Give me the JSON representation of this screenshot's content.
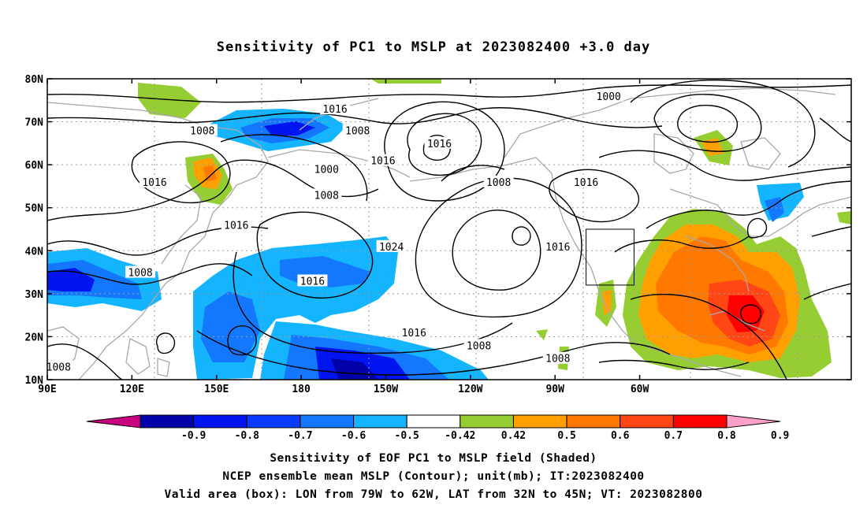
{
  "title": "Sensitivity of PC1 to MSLP at 2023082400 +3.0 day",
  "lon_ticks": [
    "90E",
    "120E",
    "150E",
    "180",
    "150W",
    "120W",
    "90W",
    "60W"
  ],
  "lat_ticks": [
    "80N",
    "70N",
    "60N",
    "50N",
    "40N",
    "30N",
    "20N",
    "10N"
  ],
  "contour_labels": [
    {
      "text": "1016",
      "lon": -168,
      "lat": 73
    },
    {
      "text": "1008",
      "lon": -160,
      "lat": 68
    },
    {
      "text": "1000",
      "lon": -71,
      "lat": 76
    },
    {
      "text": "1008",
      "lon": 145,
      "lat": 68
    },
    {
      "text": "1016",
      "lon": -131,
      "lat": 65
    },
    {
      "text": "1016",
      "lon": -151,
      "lat": 61
    },
    {
      "text": "1000",
      "lon": -171,
      "lat": 59
    },
    {
      "text": "1016",
      "lon": 128,
      "lat": 56
    },
    {
      "text": "1008",
      "lon": -110,
      "lat": 56
    },
    {
      "text": "1016",
      "lon": -79,
      "lat": 56
    },
    {
      "text": "1008",
      "lon": -171,
      "lat": 53
    },
    {
      "text": "1016",
      "lon": 157,
      "lat": 46
    },
    {
      "text": "1024",
      "lon": -148,
      "lat": 41
    },
    {
      "text": "1016",
      "lon": -89,
      "lat": 41
    },
    {
      "text": "1008",
      "lon": 123,
      "lat": 35
    },
    {
      "text": "1016",
      "lon": -176,
      "lat": 33
    },
    {
      "text": "1016",
      "lon": -140,
      "lat": 21
    },
    {
      "text": "1008",
      "lon": -117,
      "lat": 18
    },
    {
      "text": "1008",
      "lon": -89,
      "lat": 15
    },
    {
      "text": "1008",
      "lon": 94,
      "lat": 13
    }
  ],
  "valid_box": {
    "lon_min": -79,
    "lon_max": -62,
    "lat_min": 32,
    "lat_max": 45
  },
  "colorbar": {
    "labels": [
      "-0.9",
      "-0.8",
      "-0.7",
      "-0.6",
      "-0.5",
      "-0.42",
      "0.42",
      "0.5",
      "0.6",
      "0.7",
      "0.8",
      "0.9"
    ],
    "colors": [
      "#0000a8",
      "#0014f0",
      "#0a3cff",
      "#1478ff",
      "#14b4ff",
      "#ffffff",
      "#96cd32",
      "#ffa000",
      "#ff7800",
      "#ff4614",
      "#ff0000"
    ],
    "low_extend_color": "#c8007d",
    "high_extend_color": "#ffa0c8"
  },
  "caption": [
    "Sensitivity of EOF PC1 to MSLP field (Shaded)",
    "NCEP ensemble mean MSLP (Contour); unit(mb); IT:2023082400",
    "Valid area (box): LON from 79W to 62W, LAT from 32N to 45N; VT: 2023082800"
  ]
}
